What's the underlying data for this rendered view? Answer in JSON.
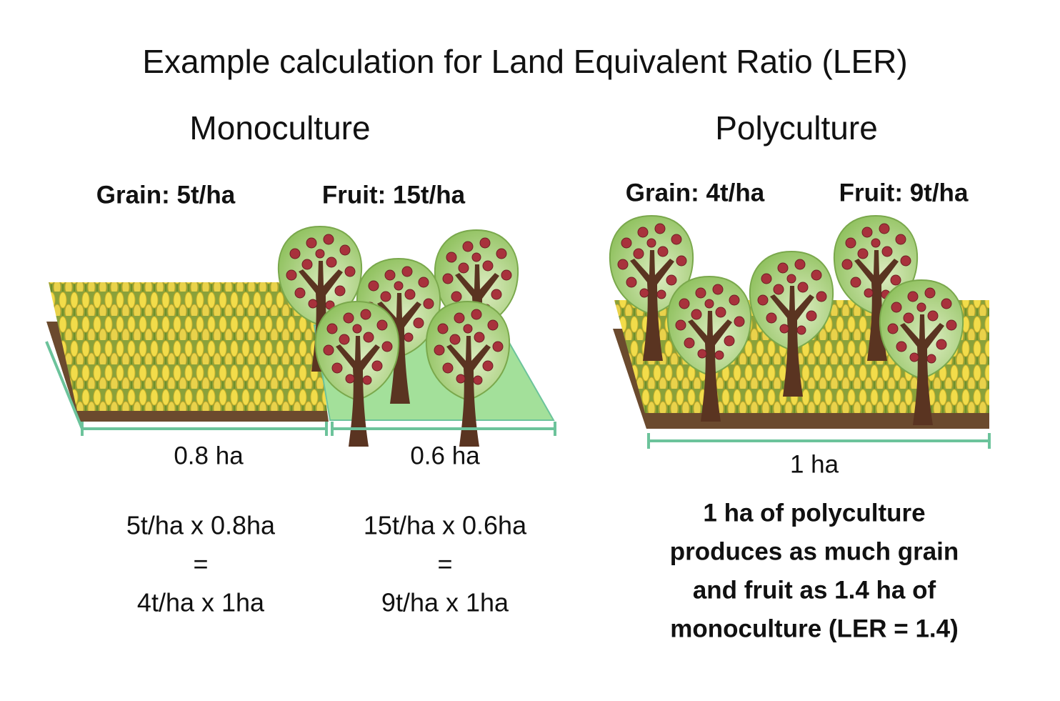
{
  "title": "Example calculation for Land Equivalent Ratio (LER)",
  "monoculture": {
    "heading": "Monoculture",
    "grain_label": "Grain: 5t/ha",
    "fruit_label": "Fruit: 15t/ha",
    "grain_area": "0.8 ha",
    "fruit_area": "0.6 ha",
    "grain_calc": [
      "5t/ha x 0.8ha",
      "=",
      "4t/ha x 1ha"
    ],
    "fruit_calc": [
      "15t/ha x 0.6ha",
      "=",
      "9t/ha x 1ha"
    ]
  },
  "polyculture": {
    "heading": "Polyculture",
    "grain_label": "Grain: 4t/ha",
    "fruit_label": "Fruit: 9t/ha",
    "area": "1 ha",
    "conclusion": [
      "1 ha of polyculture",
      "produces as much grain",
      "and fruit as 1.4 ha of",
      "monoculture (LER = 1.4)"
    ]
  }
}
